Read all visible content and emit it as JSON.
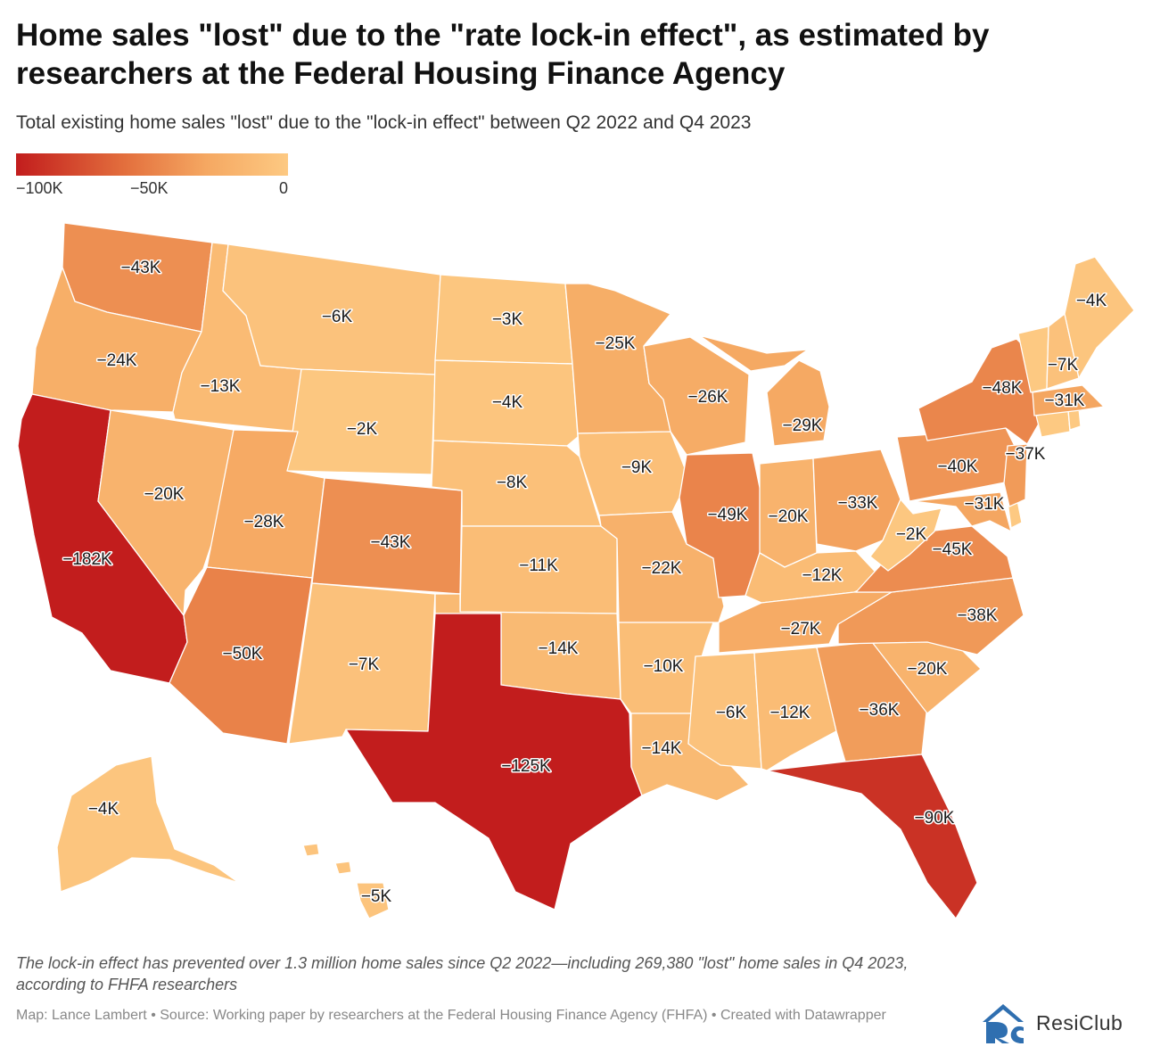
{
  "title": "Home sales \"lost\" due to the \"rate lock-in effect\", as estimated by researchers at the Federal Housing Finance Agency",
  "subtitle": "Total existing home sales \"lost\" due to the \"lock-in effect\" between Q2 2022 and Q4 2023",
  "legend": {
    "ticks": [
      "−100K",
      "−50K",
      "0"
    ],
    "colors": [
      "#c21d1d",
      "#e36f3d",
      "#f5a862",
      "#fdc982"
    ]
  },
  "note": "The lock-in effect has prevented over 1.3 million home sales since Q2 2022—including 269,380 \"lost\" home sales in Q4 2023, according to FHFA researchers",
  "source": "Map: Lance Lambert • Source: Working paper by researchers at the Federal Housing Finance Agency (FHFA) • Created with Datawrapper",
  "brand": {
    "name": "ResiClub",
    "color": "#2f6fb0"
  },
  "states": [
    {
      "id": "WA",
      "label": "−43K",
      "value": -43
    },
    {
      "id": "OR",
      "label": "−24K",
      "value": -24
    },
    {
      "id": "CA",
      "label": "−182K",
      "value": -182
    },
    {
      "id": "ID",
      "label": "−13K",
      "value": -13
    },
    {
      "id": "NV",
      "label": "−20K",
      "value": -20
    },
    {
      "id": "MT",
      "label": "−6K",
      "value": -6
    },
    {
      "id": "WY",
      "label": "−2K",
      "value": -2
    },
    {
      "id": "UT",
      "label": "−28K",
      "value": -28
    },
    {
      "id": "AZ",
      "label": "−50K",
      "value": -50
    },
    {
      "id": "CO",
      "label": "−43K",
      "value": -43
    },
    {
      "id": "NM",
      "label": "−7K",
      "value": -7
    },
    {
      "id": "ND",
      "label": "−3K",
      "value": -3
    },
    {
      "id": "SD",
      "label": "−4K",
      "value": -4
    },
    {
      "id": "NE",
      "label": "−8K",
      "value": -8
    },
    {
      "id": "KS",
      "label": "−11K",
      "value": -11
    },
    {
      "id": "OK",
      "label": "−14K",
      "value": -14
    },
    {
      "id": "TX",
      "label": "−125K",
      "value": -125
    },
    {
      "id": "MN",
      "label": "−25K",
      "value": -25
    },
    {
      "id": "IA",
      "label": "−9K",
      "value": -9
    },
    {
      "id": "MO",
      "label": "−22K",
      "value": -22
    },
    {
      "id": "AR",
      "label": "−10K",
      "value": -10
    },
    {
      "id": "LA",
      "label": "−14K",
      "value": -14
    },
    {
      "id": "WI",
      "label": "−26K",
      "value": -26
    },
    {
      "id": "IL",
      "label": "−49K",
      "value": -49
    },
    {
      "id": "MI",
      "label": "−29K",
      "value": -29
    },
    {
      "id": "IN",
      "label": "−20K",
      "value": -20
    },
    {
      "id": "OH",
      "label": "−33K",
      "value": -33
    },
    {
      "id": "KY",
      "label": "−12K",
      "value": -12
    },
    {
      "id": "TN",
      "label": "−27K",
      "value": -27
    },
    {
      "id": "MS",
      "label": "−6K",
      "value": -6
    },
    {
      "id": "AL",
      "label": "−12K",
      "value": -12
    },
    {
      "id": "GA",
      "label": "−36K",
      "value": -36
    },
    {
      "id": "FL",
      "label": "−90K",
      "value": -90
    },
    {
      "id": "SC",
      "label": "−20K",
      "value": -20
    },
    {
      "id": "NC",
      "label": "−38K",
      "value": -38
    },
    {
      "id": "VA",
      "label": "−45K",
      "value": -45
    },
    {
      "id": "WV",
      "label": "−2K",
      "value": -2
    },
    {
      "id": "MD",
      "label": "−31K",
      "value": -31
    },
    {
      "id": "DE",
      "label": "",
      "value": null
    },
    {
      "id": "PA",
      "label": "−40K",
      "value": -40
    },
    {
      "id": "NJ",
      "label": "−37K",
      "value": -37
    },
    {
      "id": "NY",
      "label": "−48K",
      "value": -48
    },
    {
      "id": "CT",
      "label": "",
      "value": null
    },
    {
      "id": "RI",
      "label": "",
      "value": null
    },
    {
      "id": "MA",
      "label": "−31K",
      "value": -31
    },
    {
      "id": "VT",
      "label": "",
      "value": null
    },
    {
      "id": "NH",
      "label": "−7K",
      "value": -7
    },
    {
      "id": "ME",
      "label": "−4K",
      "value": -4
    },
    {
      "id": "AK",
      "label": "−4K",
      "value": -4
    },
    {
      "id": "HI",
      "label": "−5K",
      "value": -5
    }
  ]
}
